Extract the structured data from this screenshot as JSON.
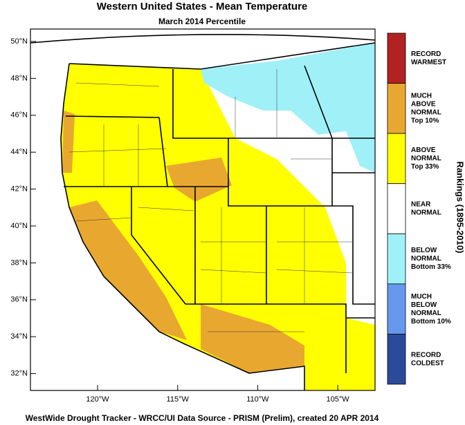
{
  "title": "Western United States - Mean Temperature",
  "subtitle": "March 2014 Percentile",
  "map": {
    "latitude_labels": [
      "50°N",
      "48°N",
      "46°N",
      "44°N",
      "42°N",
      "40°N",
      "38°N",
      "36°N",
      "34°N",
      "32°N"
    ],
    "longitude_labels": [
      "120°W",
      "115°W",
      "110°W",
      "105°W"
    ]
  },
  "legend": {
    "title": "Rankings (1895-2010)",
    "items": [
      {
        "lines": [
          "RECORD",
          "WARMEST"
        ],
        "color": "#b22222"
      },
      {
        "lines": [
          "MUCH",
          "ABOVE",
          "NORMAL",
          "Top 10%"
        ],
        "color": "#e8a830"
      },
      {
        "lines": [
          "ABOVE",
          "NORMAL",
          "Top 33%"
        ],
        "color": "#ffff00"
      },
      {
        "lines": [
          "NEAR",
          "NORMAL"
        ],
        "color": "#ffffff"
      },
      {
        "lines": [
          "BELOW",
          "NORMAL",
          "Bottom 33%"
        ],
        "color": "#a0f0f8"
      },
      {
        "lines": [
          "MUCH",
          "BELOW",
          "NORMAL",
          "Bottom 10%"
        ],
        "color": "#6699ee"
      },
      {
        "lines": [
          "RECORD",
          "COLDEST"
        ],
        "color": "#2b4a99"
      }
    ]
  },
  "footer": "WestWide Drought Tracker - WRCC/UI  Data Source - PRISM (Prelim), created 20 APR 2014"
}
